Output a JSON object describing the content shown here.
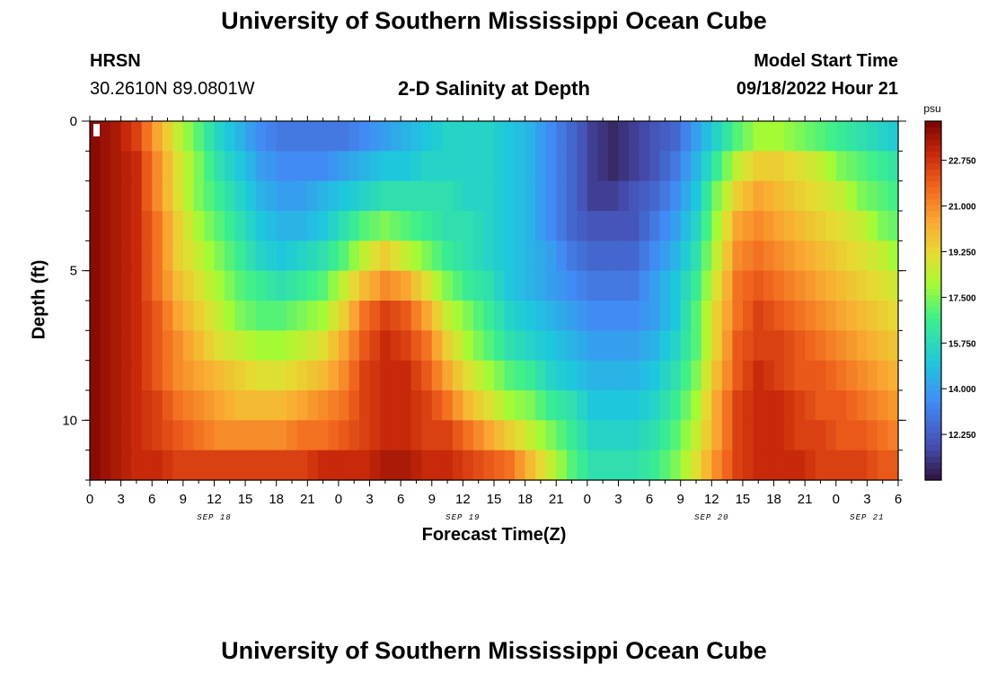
{
  "page": {
    "title_top": "University of Southern Mississippi Ocean Cube",
    "title_bottom": "University of Southern Mississippi Ocean Cube",
    "station": "HRSN",
    "coords": "30.2610N  89.0801W",
    "plot_title": "2-D Salinity at Depth",
    "model_start_label": "Model Start Time",
    "model_start_value": "09/18/2022 Hour 21"
  },
  "chart_data": {
    "type": "heatmap",
    "title": "2-D Salinity at Depth",
    "xlabel": "Forecast Time(Z)",
    "ylabel": "Depth (ft)",
    "x_hours_range": [
      0,
      78
    ],
    "x_tick_step_hours": 3,
    "x_tick_labels": [
      "0",
      "3",
      "6",
      "9",
      "12",
      "15",
      "18",
      "21",
      "0",
      "3",
      "6",
      "9",
      "12",
      "15",
      "18",
      "21",
      "0",
      "3",
      "6",
      "9",
      "12",
      "15",
      "18",
      "21",
      "0",
      "3",
      "6"
    ],
    "date_labels": [
      {
        "label": "SEP 18",
        "hour": 12
      },
      {
        "label": "SEP 19",
        "hour": 36
      },
      {
        "label": "SEP 20",
        "hour": 60
      },
      {
        "label": "SEP 21",
        "hour": 75
      }
    ],
    "y_range_ft": [
      0,
      12
    ],
    "y_tick_labels": [
      "0",
      "5",
      "10"
    ],
    "y_tick_values": [
      0,
      5,
      10
    ],
    "colorbar": {
      "unit": "psu",
      "min": 10.5,
      "max": 24.25,
      "tick_values": [
        22.75,
        21.0,
        19.25,
        17.5,
        15.75,
        14.0,
        12.25
      ],
      "tick_labels": [
        "22.750",
        "21.000",
        "19.250",
        "17.500",
        "15.750",
        "14.000",
        "12.250"
      ]
    },
    "grid": {
      "n_time": 80,
      "hour_step": 1,
      "depth_ft": [
        0.5,
        1.5,
        2.5,
        3.5,
        4.5,
        5.5,
        6.5,
        7.5,
        8.5,
        9.5,
        10.5,
        11.5
      ],
      "anchor_hours": [
        0,
        2,
        4,
        6,
        8,
        10,
        12,
        14,
        16,
        18,
        20,
        22,
        24,
        26,
        28,
        30,
        32,
        34,
        36,
        38,
        40,
        42,
        44,
        46,
        48,
        50,
        52,
        54,
        56,
        58,
        60,
        62,
        64,
        66,
        68,
        70,
        72,
        74,
        76,
        78
      ],
      "salinity_rows_psu": [
        [
          24.0,
          23.5,
          22.5,
          20.5,
          18.5,
          17.0,
          15.5,
          14.5,
          13.5,
          13.0,
          13.0,
          13.0,
          13.0,
          13.5,
          14.0,
          14.5,
          15.0,
          15.5,
          15.5,
          15.5,
          15.0,
          14.5,
          13.5,
          12.5,
          11.5,
          11.0,
          11.5,
          12.0,
          12.5,
          14.0,
          15.5,
          17.0,
          18.0,
          18.0,
          17.5,
          17.0,
          16.5,
          16.0,
          15.5,
          15.0
        ],
        [
          24.0,
          23.5,
          23.0,
          21.0,
          19.0,
          17.5,
          16.0,
          15.0,
          14.0,
          13.5,
          13.5,
          13.5,
          14.0,
          14.5,
          15.0,
          15.0,
          15.5,
          15.5,
          15.5,
          15.5,
          15.0,
          14.5,
          13.5,
          12.5,
          11.5,
          11.0,
          11.5,
          12.0,
          13.0,
          14.5,
          16.5,
          18.5,
          19.5,
          19.5,
          19.0,
          18.5,
          17.5,
          17.0,
          16.5,
          16.0
        ],
        [
          24.0,
          23.5,
          23.0,
          21.0,
          19.0,
          17.5,
          16.5,
          15.5,
          14.5,
          14.0,
          14.0,
          14.5,
          15.0,
          15.5,
          16.0,
          16.0,
          16.0,
          16.0,
          15.5,
          15.5,
          15.0,
          14.5,
          13.5,
          12.5,
          11.5,
          11.5,
          12.0,
          12.5,
          13.5,
          15.0,
          17.5,
          19.5,
          20.5,
          20.0,
          19.5,
          19.0,
          18.5,
          17.5,
          17.0,
          16.5
        ],
        [
          24.0,
          23.5,
          23.0,
          21.5,
          19.5,
          18.0,
          17.0,
          16.0,
          15.0,
          14.5,
          14.5,
          15.0,
          16.0,
          17.0,
          17.5,
          17.0,
          16.5,
          16.0,
          16.0,
          15.5,
          15.0,
          14.5,
          13.5,
          12.5,
          12.0,
          12.0,
          12.0,
          13.0,
          14.0,
          15.5,
          18.0,
          20.5,
          21.0,
          20.5,
          20.0,
          19.5,
          19.0,
          18.5,
          17.5,
          17.0
        ],
        [
          24.0,
          23.5,
          23.0,
          21.5,
          19.5,
          18.5,
          17.5,
          16.5,
          15.5,
          15.0,
          15.5,
          16.0,
          17.0,
          18.5,
          19.5,
          18.5,
          17.5,
          16.5,
          16.0,
          15.5,
          15.0,
          14.5,
          14.0,
          13.0,
          12.5,
          12.5,
          12.5,
          13.5,
          14.5,
          16.0,
          18.5,
          21.0,
          21.5,
          21.0,
          20.5,
          20.0,
          19.5,
          19.0,
          18.5,
          17.5
        ],
        [
          24.0,
          23.5,
          23.0,
          21.5,
          20.0,
          19.0,
          18.0,
          17.0,
          16.5,
          16.0,
          16.5,
          17.0,
          18.5,
          20.0,
          21.0,
          20.5,
          19.0,
          17.5,
          16.5,
          16.0,
          15.0,
          14.5,
          14.0,
          13.5,
          13.0,
          13.0,
          13.0,
          14.0,
          15.0,
          16.5,
          19.0,
          21.5,
          22.0,
          21.5,
          21.0,
          20.5,
          20.0,
          19.5,
          19.0,
          18.5
        ],
        [
          24.0,
          23.5,
          23.0,
          22.0,
          20.5,
          19.5,
          18.5,
          17.5,
          17.0,
          17.0,
          17.5,
          18.0,
          19.5,
          21.5,
          22.5,
          22.0,
          20.5,
          18.5,
          17.5,
          16.5,
          15.5,
          15.0,
          14.5,
          14.0,
          13.5,
          13.5,
          13.5,
          14.0,
          15.0,
          17.0,
          19.5,
          21.5,
          22.5,
          22.0,
          21.5,
          21.0,
          20.5,
          20.0,
          19.5,
          19.0
        ],
        [
          24.0,
          23.5,
          23.0,
          22.0,
          21.0,
          20.0,
          19.0,
          18.5,
          18.0,
          18.0,
          18.5,
          19.0,
          20.5,
          22.0,
          23.0,
          22.5,
          21.5,
          19.5,
          18.0,
          17.0,
          16.0,
          15.5,
          15.0,
          14.5,
          14.0,
          14.0,
          14.0,
          14.5,
          15.5,
          17.0,
          19.5,
          22.0,
          22.5,
          22.5,
          22.0,
          21.5,
          21.0,
          20.5,
          20.0,
          19.5
        ],
        [
          24.0,
          23.5,
          23.0,
          22.0,
          21.0,
          20.5,
          20.0,
          19.5,
          19.0,
          19.0,
          19.5,
          20.0,
          21.0,
          22.5,
          23.0,
          23.0,
          22.0,
          20.5,
          19.0,
          18.0,
          17.0,
          16.5,
          15.5,
          15.0,
          14.5,
          14.5,
          14.5,
          15.0,
          16.0,
          17.5,
          20.0,
          22.0,
          23.0,
          22.5,
          22.0,
          22.0,
          21.5,
          21.0,
          20.5,
          20.0
        ],
        [
          24.0,
          23.5,
          23.0,
          22.5,
          21.5,
          21.0,
          20.5,
          20.0,
          20.0,
          20.0,
          20.5,
          21.0,
          21.5,
          22.5,
          23.0,
          23.0,
          22.5,
          21.5,
          20.0,
          19.0,
          18.0,
          17.5,
          16.5,
          16.0,
          15.0,
          15.0,
          15.0,
          15.5,
          16.5,
          18.0,
          20.5,
          22.5,
          23.0,
          23.0,
          22.5,
          22.0,
          22.0,
          21.5,
          21.0,
          20.5
        ],
        [
          24.0,
          23.5,
          23.0,
          22.5,
          22.0,
          21.5,
          21.0,
          21.0,
          21.0,
          21.0,
          21.5,
          21.5,
          22.0,
          22.5,
          23.0,
          23.0,
          22.5,
          22.5,
          21.5,
          20.5,
          19.5,
          18.5,
          17.5,
          16.5,
          15.5,
          15.5,
          15.5,
          16.0,
          17.0,
          18.5,
          20.5,
          22.5,
          23.0,
          23.0,
          22.5,
          22.5,
          22.0,
          22.0,
          21.5,
          21.0
        ],
        [
          24.0,
          23.5,
          23.0,
          23.0,
          22.5,
          22.5,
          22.5,
          22.5,
          22.5,
          22.5,
          22.5,
          23.0,
          23.0,
          23.0,
          23.5,
          23.5,
          23.0,
          23.0,
          22.5,
          22.0,
          21.5,
          20.0,
          18.5,
          17.0,
          16.0,
          16.0,
          16.0,
          16.5,
          17.5,
          19.0,
          21.0,
          22.5,
          23.0,
          23.0,
          23.0,
          22.5,
          22.5,
          22.5,
          22.0,
          22.0
        ]
      ]
    }
  }
}
